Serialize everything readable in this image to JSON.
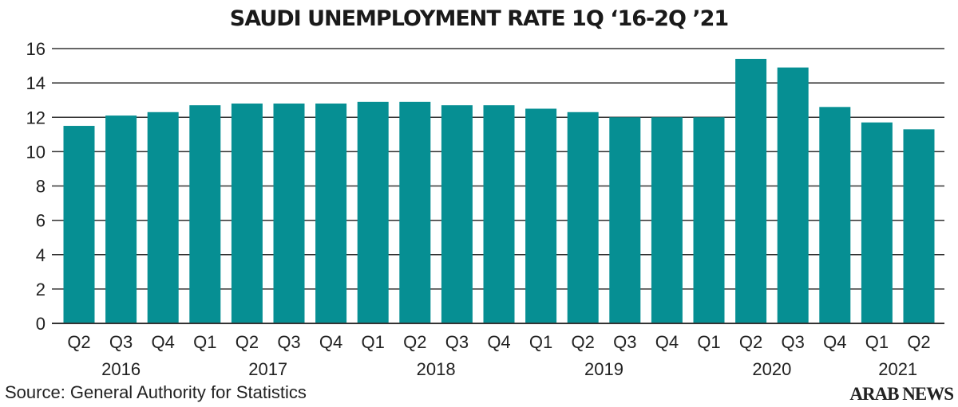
{
  "chart_data": {
    "type": "bar",
    "title": "SAUDI UNEMPLOYMENT RATE 1Q ‘16-2Q ’21",
    "xlabel": "",
    "ylabel": "",
    "ylim": [
      0,
      16
    ],
    "yticks": [
      "0",
      "2",
      "4",
      "6",
      "8",
      "10",
      "12",
      "14",
      "16"
    ],
    "grid": true,
    "bar_color": "#068f93",
    "categories": [
      "Q2",
      "Q3",
      "Q4",
      "Q1",
      "Q2",
      "Q3",
      "Q4",
      "Q1",
      "Q2",
      "Q3",
      "Q4",
      "Q1",
      "Q2",
      "Q3",
      "Q4",
      "Q1",
      "Q2",
      "Q3",
      "Q4",
      "Q1",
      "Q2"
    ],
    "year_labels": [
      {
        "label": "2016",
        "center_index": 1
      },
      {
        "label": "2017",
        "center_index": 4.5
      },
      {
        "label": "2018",
        "center_index": 8.5
      },
      {
        "label": "2019",
        "center_index": 12.5
      },
      {
        "label": "2020",
        "center_index": 16.5
      },
      {
        "label": "2021",
        "center_index": 19.5
      }
    ],
    "values": [
      11.5,
      12.1,
      12.3,
      12.7,
      12.8,
      12.8,
      12.8,
      12.9,
      12.9,
      12.7,
      12.7,
      12.5,
      12.3,
      12.0,
      12.0,
      12.0,
      15.4,
      14.9,
      12.6,
      11.7,
      11.3
    ]
  },
  "footer": {
    "source": "Source: General Authority for Statistics",
    "logo": "ARAB NEWS"
  }
}
